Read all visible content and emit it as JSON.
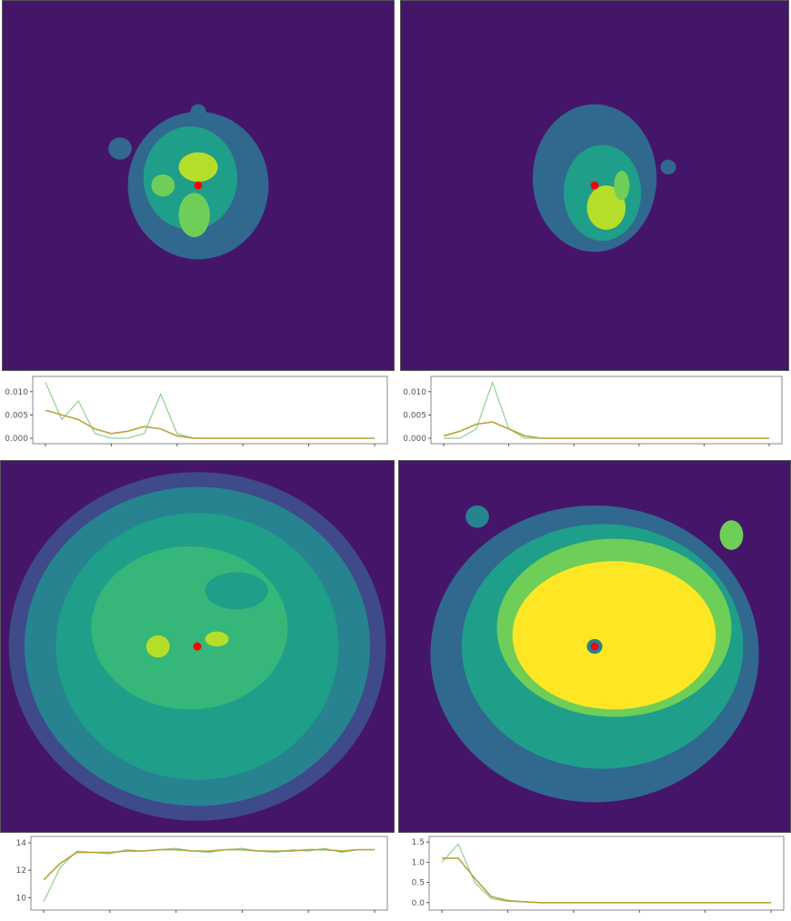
{
  "colors": {
    "background": "#45156a",
    "levels": [
      "#45156a",
      "#3e4a89",
      "#31688e",
      "#26838f",
      "#1f9e89",
      "#35b779",
      "#6ece58",
      "#b5de2b",
      "#fde725"
    ],
    "marker": "#ff0000",
    "line_raw": "#8fd18f",
    "line_smooth": "#b8a33c"
  },
  "chart_data": [
    {
      "type": "heatmap",
      "panel": "top-left",
      "blobs": [
        {
          "cx": 0.5,
          "cy": 0.5,
          "rx": 0.18,
          "ry": 0.2,
          "level": 2
        },
        {
          "cx": 0.48,
          "cy": 0.48,
          "rx": 0.12,
          "ry": 0.14,
          "level": 4
        },
        {
          "cx": 0.5,
          "cy": 0.45,
          "rx": 0.05,
          "ry": 0.04,
          "level": 7
        },
        {
          "cx": 0.41,
          "cy": 0.5,
          "rx": 0.03,
          "ry": 0.03,
          "level": 6
        },
        {
          "cx": 0.49,
          "cy": 0.58,
          "rx": 0.04,
          "ry": 0.06,
          "level": 6
        },
        {
          "cx": 0.5,
          "cy": 0.3,
          "rx": 0.02,
          "ry": 0.02,
          "level": 2
        },
        {
          "cx": 0.3,
          "cy": 0.4,
          "rx": 0.03,
          "ry": 0.03,
          "level": 2
        }
      ],
      "marker": {
        "x": 0.5,
        "y": 0.5
      }
    },
    {
      "type": "heatmap",
      "panel": "top-right",
      "blobs": [
        {
          "cx": 0.5,
          "cy": 0.48,
          "rx": 0.16,
          "ry": 0.2,
          "level": 2
        },
        {
          "cx": 0.52,
          "cy": 0.52,
          "rx": 0.1,
          "ry": 0.13,
          "level": 4
        },
        {
          "cx": 0.53,
          "cy": 0.56,
          "rx": 0.05,
          "ry": 0.06,
          "level": 7
        },
        {
          "cx": 0.57,
          "cy": 0.5,
          "rx": 0.02,
          "ry": 0.04,
          "level": 6
        },
        {
          "cx": 0.69,
          "cy": 0.45,
          "rx": 0.02,
          "ry": 0.02,
          "level": 2
        }
      ],
      "marker": {
        "x": 0.5,
        "y": 0.5
      }
    },
    {
      "type": "line",
      "panel": "top-left-density",
      "x": [
        0,
        1,
        2,
        3,
        4,
        5,
        6,
        7,
        8,
        9,
        10,
        11,
        12,
        13,
        14,
        15,
        16,
        17,
        18,
        19,
        20
      ],
      "series": [
        {
          "values": [
            0.012,
            0.004,
            0.008,
            0.001,
            0.0,
            0.0,
            0.001,
            0.0095,
            0.001,
            0.0,
            0.0,
            0.0,
            0.0,
            0.0,
            0.0,
            0.0,
            0.0,
            0.0,
            0.0,
            0.0,
            0.0
          ]
        },
        {
          "values": [
            0.006,
            0.005,
            0.004,
            0.002,
            0.001,
            0.0015,
            0.0025,
            0.002,
            0.0005,
            0.0,
            0.0,
            0.0,
            0.0,
            0.0,
            0.0,
            0.0,
            0.0,
            0.0,
            0.0,
            0.0,
            0.0
          ]
        }
      ],
      "yticks": [
        "0.000",
        "0.005",
        "0.010"
      ],
      "ylim": [
        0,
        0.0125
      ]
    },
    {
      "type": "line",
      "panel": "top-right-density",
      "x": [
        0,
        1,
        2,
        3,
        4,
        5,
        6,
        7,
        8,
        9,
        10,
        11,
        12,
        13,
        14,
        15,
        16,
        17,
        18,
        19,
        20
      ],
      "series": [
        {
          "values": [
            0.0,
            0.0,
            0.002,
            0.012,
            0.002,
            0.0,
            0.0,
            0.0,
            0.0,
            0.0,
            0.0,
            0.0,
            0.0,
            0.0,
            0.0,
            0.0,
            0.0,
            0.0,
            0.0,
            0.0,
            0.0
          ]
        },
        {
          "values": [
            0.0005,
            0.0015,
            0.003,
            0.0035,
            0.002,
            0.0005,
            0.0,
            0.0,
            0.0,
            0.0,
            0.0,
            0.0,
            0.0,
            0.0,
            0.0,
            0.0,
            0.0,
            0.0,
            0.0,
            0.0,
            0.0
          ]
        }
      ],
      "yticks": [
        "0.000",
        "0.005",
        "0.010"
      ],
      "ylim": [
        0,
        0.0125
      ]
    },
    {
      "type": "heatmap",
      "panel": "bottom-left",
      "blobs": [
        {
          "cx": 0.5,
          "cy": 0.5,
          "rx": 0.48,
          "ry": 0.47,
          "level": 1
        },
        {
          "cx": 0.5,
          "cy": 0.5,
          "rx": 0.44,
          "ry": 0.43,
          "level": 3
        },
        {
          "cx": 0.5,
          "cy": 0.5,
          "rx": 0.36,
          "ry": 0.36,
          "level": 4
        },
        {
          "cx": 0.48,
          "cy": 0.45,
          "rx": 0.25,
          "ry": 0.22,
          "level": 5
        },
        {
          "cx": 0.6,
          "cy": 0.35,
          "rx": 0.08,
          "ry": 0.05,
          "level": 4
        },
        {
          "cx": 0.4,
          "cy": 0.5,
          "rx": 0.03,
          "ry": 0.03,
          "level": 7
        },
        {
          "cx": 0.55,
          "cy": 0.48,
          "rx": 0.03,
          "ry": 0.02,
          "level": 7
        }
      ],
      "marker": {
        "x": 0.5,
        "y": 0.5
      }
    },
    {
      "type": "heatmap",
      "panel": "bottom-right",
      "blobs": [
        {
          "cx": 0.5,
          "cy": 0.52,
          "rx": 0.42,
          "ry": 0.4,
          "level": 2
        },
        {
          "cx": 0.52,
          "cy": 0.5,
          "rx": 0.36,
          "ry": 0.33,
          "level": 4
        },
        {
          "cx": 0.55,
          "cy": 0.45,
          "rx": 0.3,
          "ry": 0.24,
          "level": 6
        },
        {
          "cx": 0.55,
          "cy": 0.47,
          "rx": 0.26,
          "ry": 0.2,
          "level": 8
        },
        {
          "cx": 0.2,
          "cy": 0.15,
          "rx": 0.03,
          "ry": 0.03,
          "level": 3
        },
        {
          "cx": 0.85,
          "cy": 0.2,
          "rx": 0.03,
          "ry": 0.04,
          "level": 6
        },
        {
          "cx": 0.5,
          "cy": 0.5,
          "rx": 0.02,
          "ry": 0.02,
          "level": 3
        }
      ],
      "marker": {
        "x": 0.5,
        "y": 0.5
      }
    },
    {
      "type": "line",
      "panel": "bottom-left-density",
      "x": [
        0,
        1,
        2,
        3,
        4,
        5,
        6,
        7,
        8,
        9,
        10,
        11,
        12,
        13,
        14,
        15,
        16,
        17,
        18,
        19,
        20
      ],
      "series": [
        {
          "values": [
            9.7,
            12.2,
            13.4,
            13.3,
            13.2,
            13.5,
            13.4,
            13.5,
            13.6,
            13.4,
            13.3,
            13.5,
            13.6,
            13.4,
            13.3,
            13.5,
            13.4,
            13.6,
            13.3,
            13.5,
            13.5
          ]
        },
        {
          "values": [
            11.3,
            12.5,
            13.3,
            13.3,
            13.3,
            13.4,
            13.4,
            13.5,
            13.5,
            13.4,
            13.4,
            13.5,
            13.5,
            13.4,
            13.4,
            13.4,
            13.5,
            13.5,
            13.4,
            13.5,
            13.5
          ]
        }
      ],
      "yticks": [
        "10",
        "12",
        "14"
      ],
      "ylim": [
        9.5,
        14.2
      ]
    },
    {
      "type": "line",
      "panel": "bottom-right-density",
      "x": [
        0,
        1,
        2,
        3,
        4,
        5,
        6,
        7,
        8,
        9,
        10,
        11,
        12,
        13,
        14,
        15,
        16,
        17,
        18,
        19,
        20
      ],
      "series": [
        {
          "values": [
            1.0,
            1.45,
            0.5,
            0.1,
            0.03,
            0.02,
            0.0,
            0.0,
            0.0,
            0.0,
            0.0,
            0.0,
            0.0,
            0.0,
            0.0,
            0.0,
            0.0,
            0.0,
            0.0,
            0.0,
            0.0
          ]
        },
        {
          "values": [
            1.1,
            1.1,
            0.6,
            0.15,
            0.05,
            0.02,
            0.0,
            0.0,
            0.0,
            0.0,
            0.0,
            0.0,
            0.0,
            0.0,
            0.0,
            0.0,
            0.0,
            0.0,
            0.0,
            0.0,
            0.0
          ]
        }
      ],
      "yticks": [
        "0.0",
        "0.5",
        "1.0",
        "1.5"
      ],
      "ylim": [
        -0.05,
        1.55
      ]
    }
  ]
}
